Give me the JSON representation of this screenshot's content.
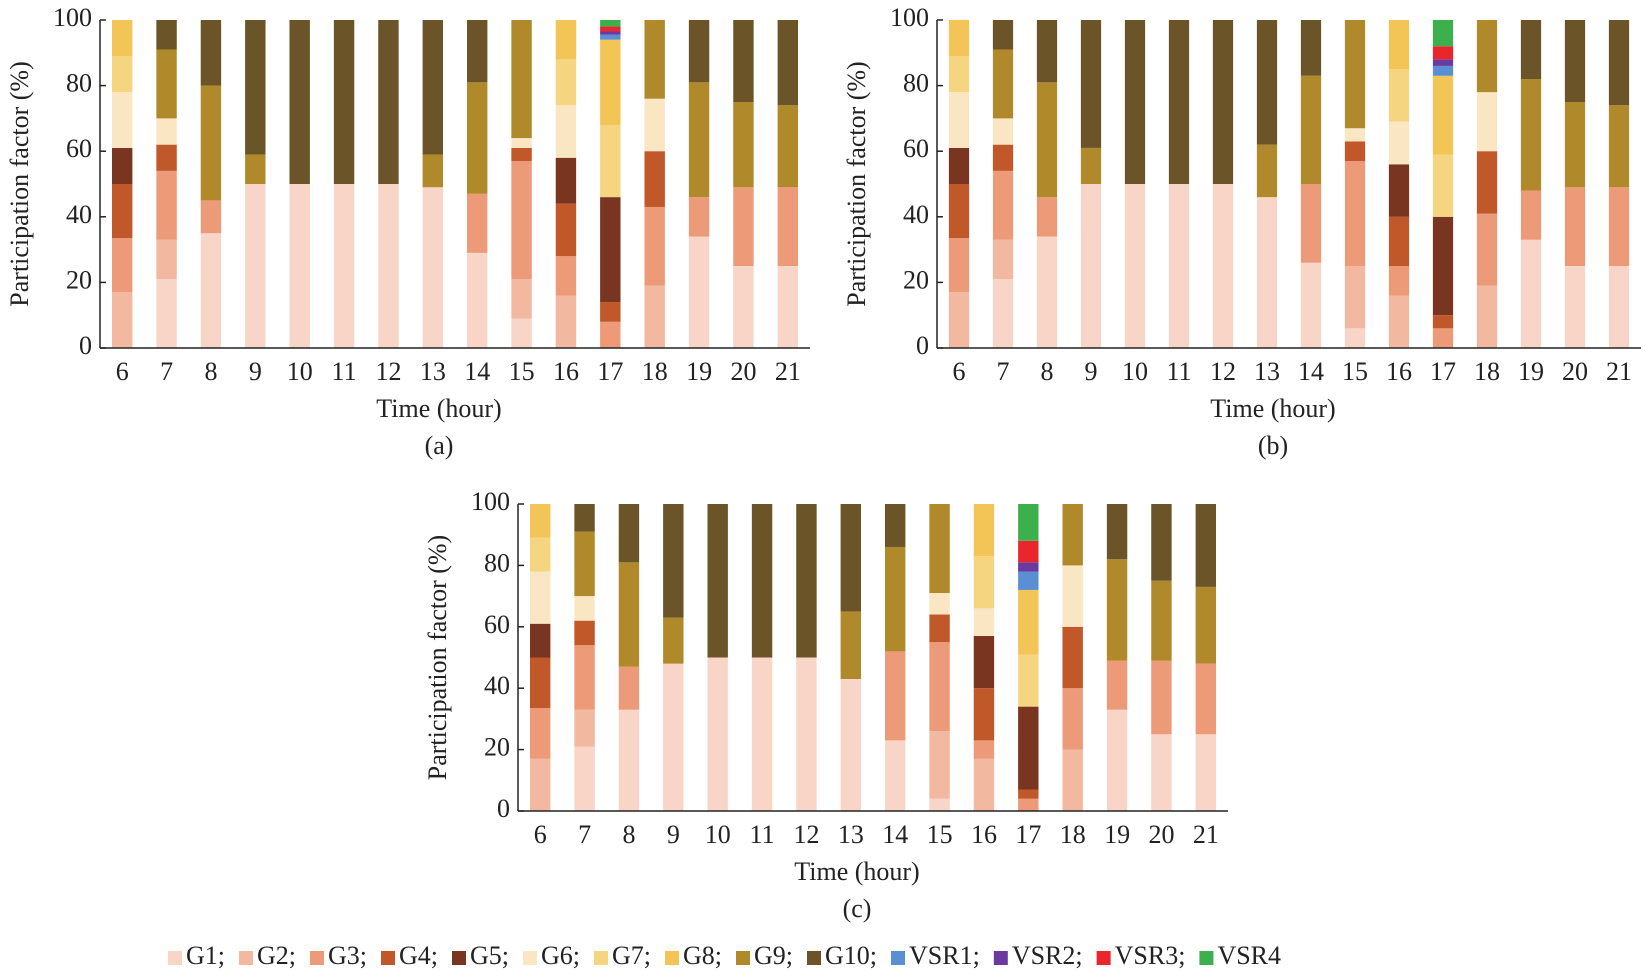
{
  "chart_data": [
    {
      "type": "bar",
      "stacked": true,
      "caption": "(a)",
      "xlabel": "Time (hour)",
      "ylabel": "Participation factor (%)",
      "categories": [
        "6",
        "7",
        "8",
        "9",
        "10",
        "11",
        "12",
        "13",
        "14",
        "15",
        "16",
        "17",
        "18",
        "19",
        "20",
        "21"
      ],
      "ylim": [
        0,
        100
      ],
      "yticks": [
        0,
        20,
        40,
        60,
        80,
        100
      ],
      "series": [
        {
          "name": "G1;",
          "color": "#f9d5c8",
          "values": [
            0,
            21,
            35,
            50,
            50,
            50,
            50,
            49,
            29,
            9,
            0,
            0,
            0,
            34,
            25,
            25
          ]
        },
        {
          "name": "G2;",
          "color": "#f2b8a0",
          "values": [
            17,
            12,
            0,
            0,
            0,
            0,
            0,
            0,
            0,
            12,
            16,
            0,
            19,
            0,
            0,
            0
          ]
        },
        {
          "name": "G3;",
          "color": "#ec9a78",
          "values": [
            16.5,
            21,
            10,
            0,
            0,
            0,
            0,
            0,
            18,
            36,
            12,
            8,
            24,
            12,
            24,
            24
          ]
        },
        {
          "name": "G4;",
          "color": "#c0582a",
          "values": [
            16.5,
            8,
            0,
            0,
            0,
            0,
            0,
            0,
            0,
            4,
            16,
            6,
            17,
            0,
            0,
            0
          ]
        },
        {
          "name": "G5;",
          "color": "#7a3520",
          "values": [
            11,
            0,
            0,
            0,
            0,
            0,
            0,
            0,
            0,
            0,
            14,
            32,
            0,
            0,
            0,
            0
          ]
        },
        {
          "name": "G6;",
          "color": "#fbe6c4",
          "values": [
            17,
            8,
            0,
            0,
            0,
            0,
            0,
            0,
            0,
            3,
            16,
            0,
            16,
            0,
            0,
            0
          ]
        },
        {
          "name": "G7;",
          "color": "#f5d580",
          "values": [
            11,
            0,
            0,
            0,
            0,
            0,
            0,
            0,
            0,
            0,
            14,
            22,
            0,
            0,
            0,
            0
          ]
        },
        {
          "name": "G8;",
          "color": "#f2c556",
          "values": [
            11,
            0,
            0,
            0,
            0,
            0,
            0,
            0,
            0,
            0,
            12,
            26,
            0,
            0,
            0,
            0
          ]
        },
        {
          "name": "G9;",
          "color": "#b08a2a",
          "values": [
            0,
            21,
            35,
            9,
            0,
            0,
            0,
            10,
            34,
            36,
            0,
            0,
            24,
            35,
            26,
            25
          ]
        },
        {
          "name": "G10;",
          "color": "#6b5528",
          "values": [
            0,
            9,
            20,
            41,
            50,
            50,
            50,
            41,
            19,
            0,
            0,
            0,
            0,
            19,
            25,
            26
          ]
        },
        {
          "name": "VSR1;",
          "color": "#5b8fd4",
          "values": [
            0,
            0,
            0,
            0,
            0,
            0,
            0,
            0,
            0,
            0,
            0,
            1.5,
            0,
            0,
            0,
            0
          ]
        },
        {
          "name": "VSR2;",
          "color": "#6a3aa0",
          "values": [
            0,
            0,
            0,
            0,
            0,
            0,
            0,
            0,
            0,
            0,
            0,
            1,
            0,
            0,
            0,
            0
          ]
        },
        {
          "name": "VSR3;",
          "color": "#e8262c",
          "values": [
            0,
            0,
            0,
            0,
            0,
            0,
            0,
            0,
            0,
            0,
            0,
            1.5,
            0,
            0,
            0,
            0
          ]
        },
        {
          "name": "VSR4",
          "color": "#3cb04c",
          "values": [
            0,
            0,
            0,
            0,
            0,
            0,
            0,
            0,
            0,
            0,
            0,
            2,
            0,
            0,
            0,
            0
          ]
        }
      ]
    },
    {
      "type": "bar",
      "stacked": true,
      "caption": "(b)",
      "xlabel": "Time (hour)",
      "ylabel": "Participation factor (%)",
      "categories": [
        "6",
        "7",
        "8",
        "9",
        "10",
        "11",
        "12",
        "13",
        "14",
        "15",
        "16",
        "17",
        "18",
        "19",
        "20",
        "21"
      ],
      "ylim": [
        0,
        100
      ],
      "yticks": [
        0,
        20,
        40,
        60,
        80,
        100
      ],
      "series": [
        {
          "name": "G1;",
          "color": "#f9d5c8",
          "values": [
            0,
            21,
            34,
            50,
            50,
            50,
            50,
            46,
            26,
            6,
            0,
            0,
            0,
            33,
            25,
            25
          ]
        },
        {
          "name": "G2;",
          "color": "#f2b8a0",
          "values": [
            17,
            12,
            0,
            0,
            0,
            0,
            0,
            0,
            0,
            19,
            16,
            0,
            19,
            0,
            0,
            0
          ]
        },
        {
          "name": "G3;",
          "color": "#ec9a78",
          "values": [
            16.5,
            21,
            12,
            0,
            0,
            0,
            0,
            0,
            24,
            32,
            9,
            6,
            22,
            15,
            24,
            24
          ]
        },
        {
          "name": "G4;",
          "color": "#c0582a",
          "values": [
            16.5,
            8,
            0,
            0,
            0,
            0,
            0,
            0,
            0,
            6,
            15,
            4,
            19,
            0,
            0,
            0
          ]
        },
        {
          "name": "G5;",
          "color": "#7a3520",
          "values": [
            11,
            0,
            0,
            0,
            0,
            0,
            0,
            0,
            0,
            0,
            16,
            30,
            0,
            0,
            0,
            0
          ]
        },
        {
          "name": "G6;",
          "color": "#fbe6c4",
          "values": [
            17,
            8,
            0,
            0,
            0,
            0,
            0,
            0,
            0,
            4,
            13,
            0,
            18,
            0,
            0,
            0
          ]
        },
        {
          "name": "G7;",
          "color": "#f5d580",
          "values": [
            11,
            0,
            0,
            0,
            0,
            0,
            0,
            0,
            0,
            0,
            16,
            19,
            0,
            0,
            0,
            0
          ]
        },
        {
          "name": "G8;",
          "color": "#f2c556",
          "values": [
            11,
            0,
            0,
            0,
            0,
            0,
            0,
            0,
            0,
            0,
            15,
            24,
            0,
            0,
            0,
            0
          ]
        },
        {
          "name": "G9;",
          "color": "#b08a2a",
          "values": [
            0,
            21,
            35,
            11,
            0,
            0,
            0,
            16,
            33,
            33,
            0,
            0,
            22,
            34,
            26,
            25
          ]
        },
        {
          "name": "G10;",
          "color": "#6b5528",
          "values": [
            0,
            9,
            19,
            39,
            50,
            50,
            50,
            38,
            17,
            0,
            0,
            0,
            0,
            18,
            25,
            26
          ]
        },
        {
          "name": "VSR1;",
          "color": "#5b8fd4",
          "values": [
            0,
            0,
            0,
            0,
            0,
            0,
            0,
            0,
            0,
            0,
            0,
            3,
            0,
            0,
            0,
            0
          ]
        },
        {
          "name": "VSR2;",
          "color": "#6a3aa0",
          "values": [
            0,
            0,
            0,
            0,
            0,
            0,
            0,
            0,
            0,
            0,
            0,
            2,
            0,
            0,
            0,
            0
          ]
        },
        {
          "name": "VSR3;",
          "color": "#e8262c",
          "values": [
            0,
            0,
            0,
            0,
            0,
            0,
            0,
            0,
            0,
            0,
            0,
            4,
            0,
            0,
            0,
            0
          ]
        },
        {
          "name": "VSR4",
          "color": "#3cb04c",
          "values": [
            0,
            0,
            0,
            0,
            0,
            0,
            0,
            0,
            0,
            0,
            0,
            8,
            0,
            0,
            0,
            0
          ]
        }
      ]
    },
    {
      "type": "bar",
      "stacked": true,
      "caption": "(c)",
      "xlabel": "Time (hour)",
      "ylabel": "Participation factor (%)",
      "categories": [
        "6",
        "7",
        "8",
        "9",
        "10",
        "11",
        "12",
        "13",
        "14",
        "15",
        "16",
        "17",
        "18",
        "19",
        "20",
        "21"
      ],
      "ylim": [
        0,
        100
      ],
      "yticks": [
        0,
        20,
        40,
        60,
        80,
        100
      ],
      "series": [
        {
          "name": "G1;",
          "color": "#f9d5c8",
          "values": [
            0,
            21,
            33,
            48,
            50,
            50,
            50,
            43,
            23,
            4,
            0,
            0,
            0,
            33,
            25,
            25
          ]
        },
        {
          "name": "G2;",
          "color": "#f2b8a0",
          "values": [
            17,
            12,
            0,
            0,
            0,
            0,
            0,
            0,
            0,
            22,
            17,
            0,
            20,
            0,
            0,
            0
          ]
        },
        {
          "name": "G3;",
          "color": "#ec9a78",
          "values": [
            16.5,
            21,
            14,
            0,
            0,
            0,
            0,
            0,
            29,
            29,
            6,
            4,
            20,
            16,
            24,
            23
          ]
        },
        {
          "name": "G4;",
          "color": "#c0582a",
          "values": [
            16.5,
            8,
            0,
            0,
            0,
            0,
            0,
            0,
            0,
            9,
            17,
            3,
            20,
            0,
            0,
            0
          ]
        },
        {
          "name": "G5;",
          "color": "#7a3520",
          "values": [
            11,
            0,
            0,
            0,
            0,
            0,
            0,
            0,
            0,
            0,
            17,
            27,
            0,
            0,
            0,
            0
          ]
        },
        {
          "name": "G6;",
          "color": "#fbe6c4",
          "values": [
            17,
            8,
            0,
            0,
            0,
            0,
            0,
            0,
            0,
            7,
            9,
            0,
            20,
            0,
            0,
            0
          ]
        },
        {
          "name": "G7;",
          "color": "#f5d580",
          "values": [
            11,
            0,
            0,
            0,
            0,
            0,
            0,
            0,
            0,
            0,
            17,
            17,
            0,
            0,
            0,
            0
          ]
        },
        {
          "name": "G8;",
          "color": "#f2c556",
          "values": [
            11,
            0,
            0,
            0,
            0,
            0,
            0,
            0,
            0,
            0,
            17,
            21,
            0,
            0,
            0,
            0
          ]
        },
        {
          "name": "G9;",
          "color": "#b08a2a",
          "values": [
            0,
            21,
            34,
            15,
            0,
            0,
            0,
            22,
            34,
            29,
            0,
            0,
            20,
            33,
            26,
            25
          ]
        },
        {
          "name": "G10;",
          "color": "#6b5528",
          "values": [
            0,
            9,
            19,
            37,
            50,
            50,
            50,
            35,
            14,
            0,
            0,
            0,
            0,
            18,
            25,
            27
          ]
        },
        {
          "name": "VSR1;",
          "color": "#5b8fd4",
          "values": [
            0,
            0,
            0,
            0,
            0,
            0,
            0,
            0,
            0,
            0,
            0,
            6,
            0,
            0,
            0,
            0
          ]
        },
        {
          "name": "VSR2;",
          "color": "#6a3aa0",
          "values": [
            0,
            0,
            0,
            0,
            0,
            0,
            0,
            0,
            0,
            0,
            0,
            3,
            0,
            0,
            0,
            0
          ]
        },
        {
          "name": "VSR3;",
          "color": "#e8262c",
          "values": [
            0,
            0,
            0,
            0,
            0,
            0,
            0,
            0,
            0,
            0,
            0,
            7,
            0,
            0,
            0,
            0
          ]
        },
        {
          "name": "VSR4",
          "color": "#3cb04c",
          "values": [
            0,
            0,
            0,
            0,
            0,
            0,
            0,
            0,
            0,
            0,
            0,
            12,
            0,
            0,
            0,
            0
          ]
        }
      ]
    }
  ]
}
